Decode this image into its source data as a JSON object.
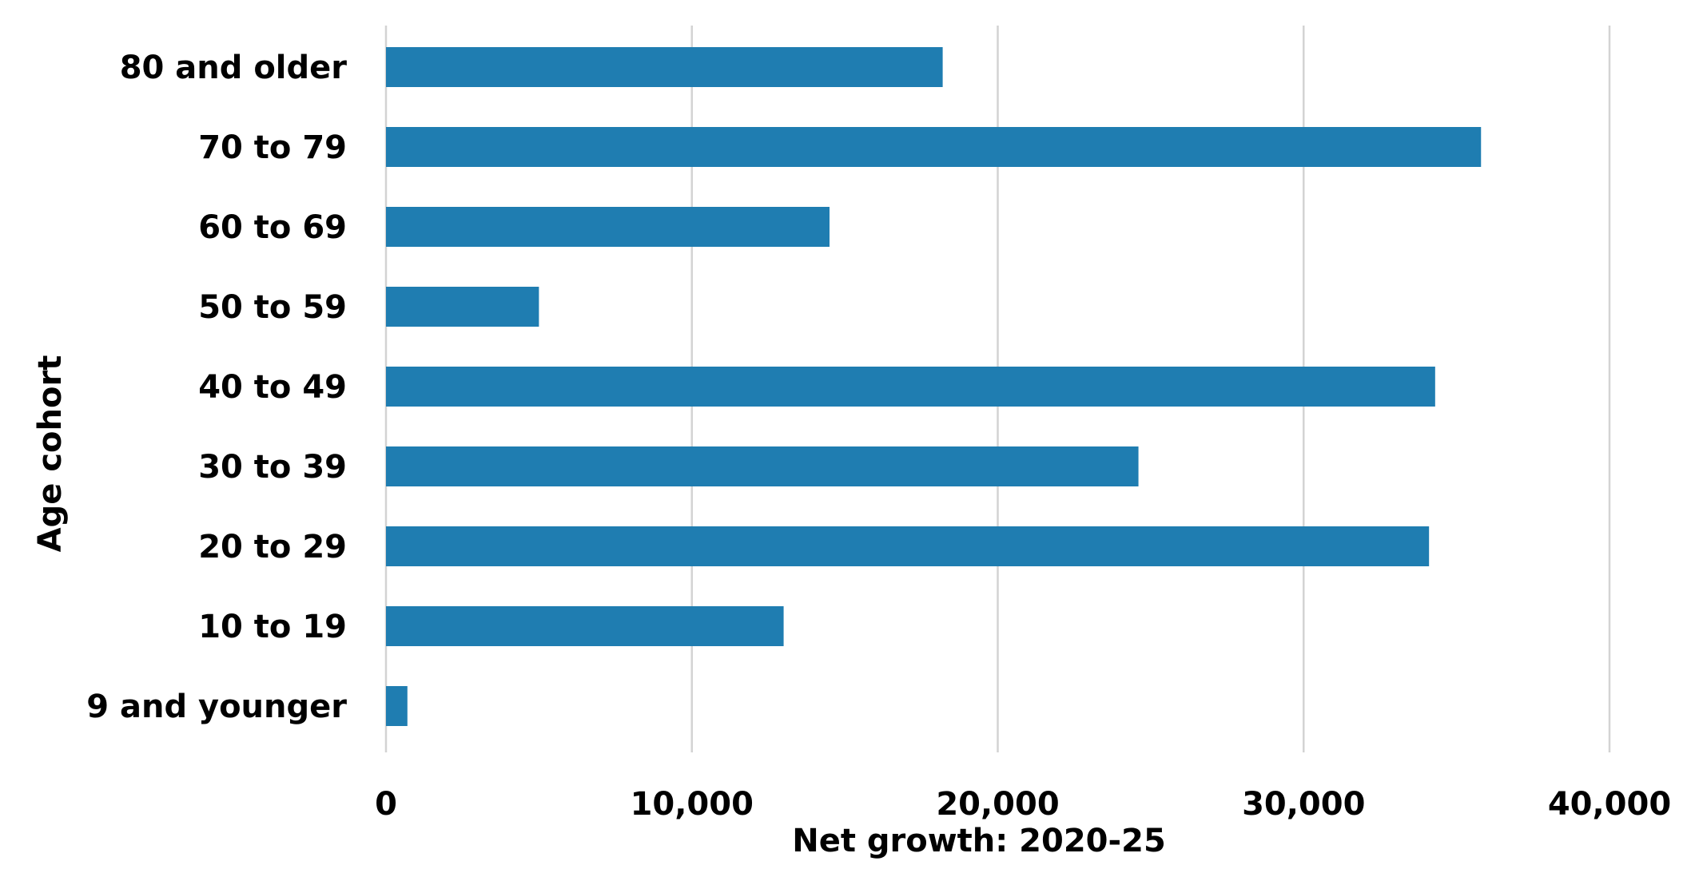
{
  "chart_data": {
    "type": "bar",
    "orientation": "horizontal",
    "categories": [
      "80 and older",
      "70 to 79",
      "60 to 69",
      "50 to 59",
      "40 to 49",
      "30 to 39",
      "20 to 29",
      "10 to 19",
      "9 and younger"
    ],
    "values": [
      18200,
      35800,
      14500,
      5000,
      34300,
      24600,
      34100,
      13000,
      700
    ],
    "xlabel": "Net growth: 2020-25",
    "ylabel": "Age cohort",
    "xlim": [
      0,
      40000
    ],
    "xticks": [
      0,
      10000,
      20000,
      30000,
      40000
    ],
    "xtick_labels": [
      "0",
      "10,000",
      "20,000",
      "30,000",
      "40,000"
    ],
    "grid": "vertical",
    "bar_color": "#1f7db1",
    "grid_color": "#d3d3d3"
  }
}
